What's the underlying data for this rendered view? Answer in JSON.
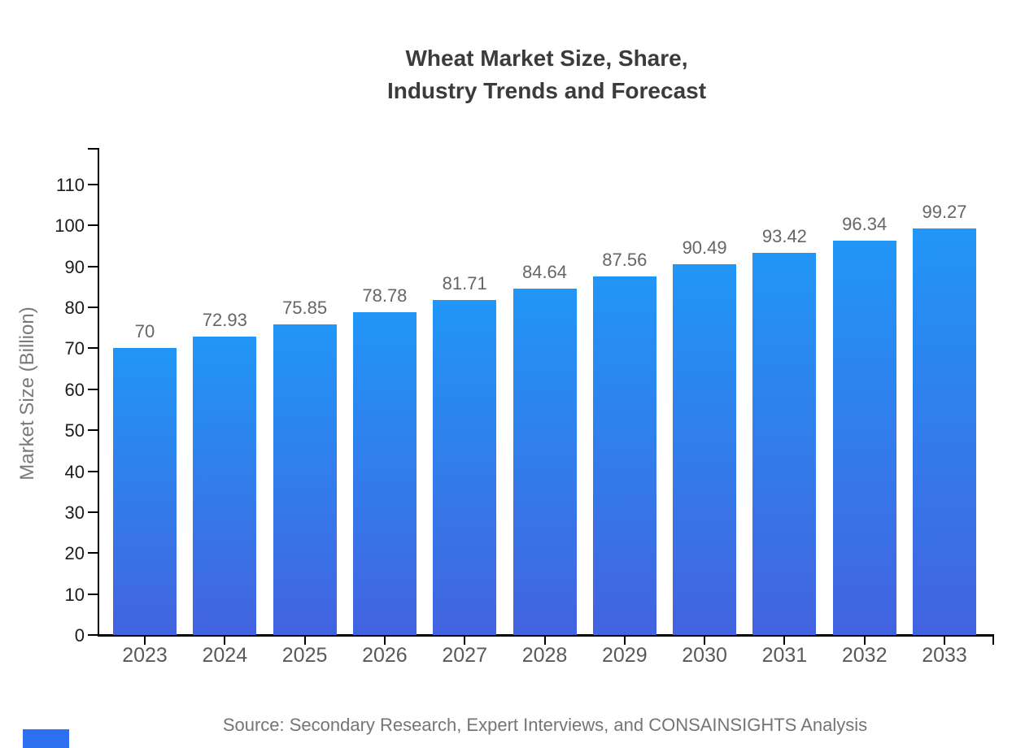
{
  "title": {
    "line1": "Wheat Market Size, Share,",
    "line2": "Industry Trends and Forecast"
  },
  "chart_data": {
    "type": "bar",
    "title": "Wheat Market Size, Share, Industry Trends and Forecast",
    "categories": [
      "2023",
      "2024",
      "2025",
      "2026",
      "2027",
      "2028",
      "2029",
      "2030",
      "2031",
      "2032",
      "2033"
    ],
    "values": [
      70,
      72.93,
      75.85,
      78.78,
      81.71,
      84.64,
      87.56,
      90.49,
      93.42,
      96.34,
      99.27
    ],
    "xlabel": "",
    "ylabel": "Market Size (Billion)",
    "ylim": [
      0,
      119
    ],
    "yticks": [
      0,
      10,
      20,
      30,
      40,
      50,
      60,
      70,
      80,
      90,
      100,
      110
    ],
    "grid": false,
    "legend": "none",
    "bar_color_top": "#2196f7",
    "bar_color_bottom": "#4363e0"
  },
  "source_note": "Source: Secondary Research, Expert Interviews, and CONSAINSIGHTS Analysis",
  "colors": {
    "title_text": "#3b3b3b",
    "axis_line": "#000000",
    "y_tick_label": "#1c1c1c",
    "x_tick_label": "#595959",
    "value_label": "#666666",
    "y_axis_title": "#7a7a7a",
    "source_text": "#757575",
    "logo_blue": "#2e70ef"
  }
}
